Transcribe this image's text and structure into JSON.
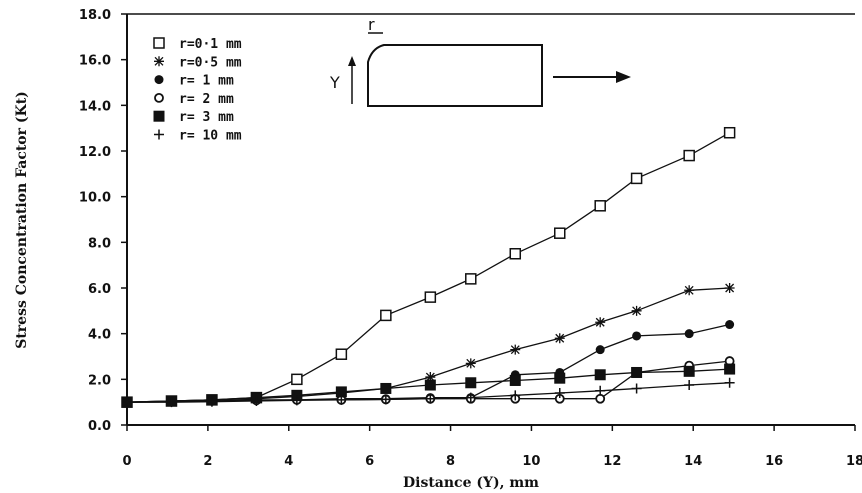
{
  "chart_data": {
    "type": "line",
    "title": "",
    "xlabel": "Distance (Y), mm",
    "ylabel": "Stress Concentration Factor (Kt)",
    "xlim": [
      0,
      18
    ],
    "ylim": [
      0,
      18
    ],
    "x_ticks": [
      "0",
      "2",
      "4",
      "6",
      "8",
      "10",
      "12",
      "14",
      "16",
      "18"
    ],
    "y_ticks": [
      "0.0",
      "2.0",
      "4.0",
      "6.0",
      "8.0",
      "10.0",
      "12.0",
      "14.0",
      "16.0",
      "18.0"
    ],
    "grid": false,
    "legend_position": "top-left",
    "series": [
      {
        "name": "r=0·1 mm",
        "marker": "open-square",
        "x": [
          0,
          1.1,
          2.1,
          3.2,
          4.2,
          5.3,
          6.4,
          7.5,
          8.5,
          9.6,
          10.7,
          11.7,
          12.6,
          13.9,
          14.9
        ],
        "y": [
          1.0,
          1.05,
          1.1,
          1.2,
          2.0,
          3.1,
          4.8,
          5.6,
          6.4,
          7.5,
          8.4,
          9.6,
          10.8,
          11.8,
          12.8
        ]
      },
      {
        "name": "r=0·5 mm",
        "marker": "asterisk",
        "x": [
          0,
          1.1,
          2.1,
          3.2,
          4.2,
          5.3,
          6.4,
          7.5,
          8.5,
          9.6,
          10.7,
          11.7,
          12.6,
          13.9,
          14.9
        ],
        "y": [
          1.0,
          1.05,
          1.1,
          1.15,
          1.25,
          1.4,
          1.6,
          2.1,
          2.7,
          3.3,
          3.8,
          4.5,
          5.0,
          5.9,
          6.0
        ]
      },
      {
        "name": "r= 1 mm",
        "marker": "filled-circle",
        "x": [
          0,
          1.1,
          2.1,
          3.2,
          4.2,
          5.3,
          6.4,
          7.5,
          8.5,
          9.6,
          10.7,
          11.7,
          12.6,
          13.9,
          14.9
        ],
        "y": [
          1.0,
          1.02,
          1.05,
          1.1,
          1.1,
          1.15,
          1.15,
          1.2,
          1.2,
          2.2,
          2.3,
          3.3,
          3.9,
          4.0,
          4.4
        ]
      },
      {
        "name": "r= 2 mm",
        "marker": "open-circle",
        "x": [
          0,
          1.1,
          2.1,
          3.2,
          4.2,
          5.3,
          6.4,
          7.5,
          8.5,
          9.6,
          10.7,
          11.7,
          12.6,
          13.9,
          14.9
        ],
        "y": [
          1.0,
          1.02,
          1.05,
          1.08,
          1.1,
          1.1,
          1.12,
          1.15,
          1.15,
          1.15,
          1.15,
          1.15,
          2.3,
          2.6,
          2.8
        ]
      },
      {
        "name": "r= 3 mm",
        "marker": "filled-square",
        "x": [
          0,
          1.1,
          2.1,
          3.2,
          4.2,
          5.3,
          6.4,
          7.5,
          8.5,
          9.6,
          10.7,
          11.7,
          12.6,
          13.9,
          14.9
        ],
        "y": [
          1.0,
          1.05,
          1.1,
          1.2,
          1.3,
          1.45,
          1.6,
          1.75,
          1.85,
          1.95,
          2.05,
          2.2,
          2.3,
          2.35,
          2.45
        ]
      },
      {
        "name": "r= 10 mm",
        "marker": "plus",
        "x": [
          0,
          1.1,
          2.1,
          3.2,
          4.2,
          5.3,
          6.4,
          7.5,
          8.5,
          9.6,
          10.7,
          11.7,
          12.6,
          13.9,
          14.9
        ],
        "y": [
          1.0,
          1.0,
          1.02,
          1.05,
          1.08,
          1.1,
          1.12,
          1.15,
          1.2,
          1.3,
          1.4,
          1.5,
          1.6,
          1.75,
          1.85
        ]
      }
    ],
    "inset": {
      "radius_label": "r",
      "axis_label": "Y"
    }
  }
}
